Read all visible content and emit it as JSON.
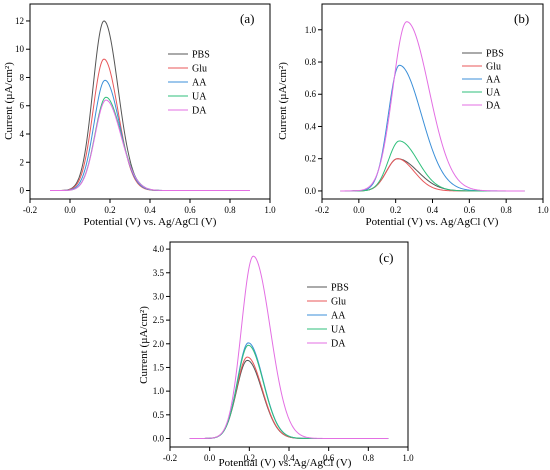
{
  "figure": {
    "colors": {
      "PBS": "#555555",
      "Glu": "#e8575a",
      "AA": "#3b8fd8",
      "UA": "#2fbf7b",
      "DA": "#e36fe3",
      "axis": "#000000"
    }
  },
  "chart_data": [
    {
      "type": "line",
      "panel": "(a)",
      "xlabel": "Potential (V) vs. Ag/AgCl (V)",
      "ylabel": "Current (µA/cm²)",
      "xlim": [
        -0.2,
        1.0
      ],
      "ylim": [
        -0.6,
        13.2
      ],
      "xticks": [
        -0.2,
        0.0,
        0.2,
        0.4,
        0.6,
        0.8,
        1.0
      ],
      "xtick_labels": [
        "-0.2",
        "0.0",
        "0.2",
        "0.4",
        "0.6",
        "0.8",
        "1.0"
      ],
      "yticks": [
        0,
        2,
        4,
        6,
        8,
        10,
        12
      ],
      "ytick_labels": [
        "0",
        "2",
        "4",
        "6",
        "8",
        "10",
        "12"
      ],
      "x_range_of_data": [
        -0.1,
        0.9
      ],
      "legend": "top-right",
      "series": [
        {
          "name": "PBS",
          "peak_x": 0.17,
          "peak_y": 12.0,
          "width_left": 0.055,
          "width_right": 0.07
        },
        {
          "name": "Glu",
          "peak_x": 0.17,
          "peak_y": 9.3,
          "width_left": 0.055,
          "width_right": 0.07
        },
        {
          "name": "AA",
          "peak_x": 0.175,
          "peak_y": 7.8,
          "width_left": 0.055,
          "width_right": 0.072
        },
        {
          "name": "UA",
          "peak_x": 0.18,
          "peak_y": 6.6,
          "width_left": 0.055,
          "width_right": 0.075
        },
        {
          "name": "DA",
          "peak_x": 0.18,
          "peak_y": 6.4,
          "width_left": 0.055,
          "width_right": 0.075
        }
      ]
    },
    {
      "type": "line",
      "panel": "(b)",
      "xlabel": "Potential (V) vs. Ag/AgCl (V)",
      "ylabel": "Current (µA/cm²)",
      "xlim": [
        -0.2,
        1.0
      ],
      "ylim": [
        -0.05,
        1.16
      ],
      "xticks": [
        -0.2,
        0.0,
        0.2,
        0.4,
        0.6,
        0.8,
        1.0
      ],
      "xtick_labels": [
        "-0.2",
        "0.0",
        "0.2",
        "0.4",
        "0.6",
        "0.8",
        "1.0"
      ],
      "yticks": [
        0.0,
        0.2,
        0.4,
        0.6,
        0.8,
        1.0
      ],
      "ytick_labels": [
        "0.0",
        "0.2",
        "0.4",
        "0.6",
        "0.8",
        "1.0"
      ],
      "x_range_of_data": [
        -0.1,
        0.9
      ],
      "legend": "top-right",
      "series": [
        {
          "name": "PBS",
          "peak_x": 0.21,
          "peak_y": 0.2,
          "width_left": 0.06,
          "width_right": 0.11
        },
        {
          "name": "Glu",
          "peak_x": 0.21,
          "peak_y": 0.2,
          "width_left": 0.06,
          "width_right": 0.09
        },
        {
          "name": "AA",
          "peak_x": 0.22,
          "peak_y": 0.78,
          "width_left": 0.06,
          "width_right": 0.12
        },
        {
          "name": "UA",
          "peak_x": 0.22,
          "peak_y": 0.31,
          "width_left": 0.06,
          "width_right": 0.1
        },
        {
          "name": "DA",
          "peak_x": 0.26,
          "peak_y": 1.05,
          "width_left": 0.075,
          "width_right": 0.12
        }
      ]
    },
    {
      "type": "line",
      "panel": "(c)",
      "xlabel": "Potential (V) vs. Ag/AgCl (V)",
      "ylabel": "Current (µA/cm²)",
      "xlim": [
        -0.2,
        1.0
      ],
      "ylim": [
        -0.18,
        4.15
      ],
      "xticks": [
        -0.2,
        0.0,
        0.2,
        0.4,
        0.6,
        0.8,
        1.0
      ],
      "xtick_labels": [
        "-0.2",
        "0.0",
        "0.2",
        "0.4",
        "0.6",
        "0.8",
        "1.0"
      ],
      "yticks": [
        0.0,
        0.5,
        1.0,
        1.5,
        2.0,
        2.5,
        3.0,
        3.5,
        4.0
      ],
      "ytick_labels": [
        "0.0",
        "0.5",
        "1.0",
        "1.5",
        "2.0",
        "2.5",
        "3.0",
        "3.5",
        "4.0"
      ],
      "x_range_of_data": [
        -0.1,
        0.9
      ],
      "legend": "top-right",
      "series": [
        {
          "name": "PBS",
          "peak_x": 0.19,
          "peak_y": 1.65,
          "width_left": 0.055,
          "width_right": 0.075
        },
        {
          "name": "Glu",
          "peak_x": 0.19,
          "peak_y": 1.72,
          "width_left": 0.055,
          "width_right": 0.075
        },
        {
          "name": "AA",
          "peak_x": 0.195,
          "peak_y": 2.02,
          "width_left": 0.055,
          "width_right": 0.075
        },
        {
          "name": "UA",
          "peak_x": 0.195,
          "peak_y": 1.97,
          "width_left": 0.055,
          "width_right": 0.075
        },
        {
          "name": "DA",
          "peak_x": 0.22,
          "peak_y": 3.85,
          "width_left": 0.06,
          "width_right": 0.085
        }
      ]
    }
  ]
}
